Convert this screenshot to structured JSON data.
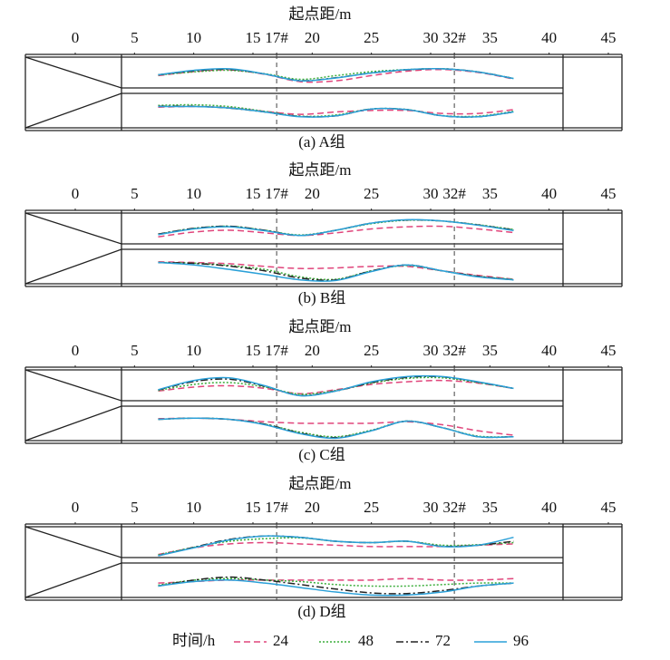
{
  "legend": {
    "title": "时间/h"
  },
  "chart_data": [
    {
      "type": "line",
      "title": "起点距/m",
      "caption": "(a) A组",
      "xlim": [
        -4.2,
        46.1
      ],
      "ylim": [
        0,
        1
      ],
      "xticks": [
        0,
        5,
        10,
        15,
        {
          "value": 17,
          "label": "17#"
        },
        20,
        25,
        30,
        {
          "value": 32,
          "label": "32#"
        },
        35,
        40,
        45
      ],
      "reference_lines": [
        17,
        32
      ],
      "x": [
        7,
        10,
        13,
        16,
        19,
        22,
        25,
        28,
        31,
        34,
        37
      ],
      "series": [
        {
          "name": "24",
          "color": "#e0457b",
          "dash": "dashed",
          "values": [
            0.4,
            0.55,
            0.62,
            0.45,
            0.17,
            0.2,
            0.4,
            0.57,
            0.63,
            0.52,
            0.27
          ],
          "lower_values": [
            0.66,
            0.68,
            0.64,
            0.52,
            0.42,
            0.5,
            0.55,
            0.55,
            0.45,
            0.45,
            0.58
          ]
        },
        {
          "name": "48",
          "color": "#3cae3c",
          "dash": "dotted",
          "values": [
            0.42,
            0.54,
            0.6,
            0.47,
            0.26,
            0.4,
            0.55,
            0.63,
            0.66,
            0.54,
            0.29
          ],
          "lower_values": [
            0.72,
            0.74,
            0.68,
            0.52,
            0.36,
            0.4,
            0.6,
            0.58,
            0.38,
            0.36,
            0.52
          ]
        },
        {
          "name": "72",
          "color": "#222222",
          "dash": "dashdot",
          "values": [
            0.43,
            0.58,
            0.64,
            0.46,
            0.21,
            0.32,
            0.5,
            0.62,
            0.66,
            0.54,
            0.29
          ],
          "lower_values": [
            0.69,
            0.69,
            0.63,
            0.5,
            0.35,
            0.37,
            0.6,
            0.58,
            0.37,
            0.34,
            0.5
          ]
        },
        {
          "name": "96",
          "color": "#2aa0d8",
          "dash": "solid",
          "values": [
            0.43,
            0.6,
            0.66,
            0.46,
            0.2,
            0.31,
            0.5,
            0.63,
            0.66,
            0.54,
            0.29
          ],
          "lower_values": [
            0.68,
            0.68,
            0.63,
            0.5,
            0.34,
            0.37,
            0.6,
            0.58,
            0.37,
            0.34,
            0.5
          ]
        }
      ]
    },
    {
      "type": "line",
      "title": "起点距/m",
      "caption": "(b) B组",
      "xlim": [
        -4.2,
        46.1
      ],
      "ylim": [
        0,
        1
      ],
      "xticks": [
        0,
        5,
        10,
        15,
        {
          "value": 17,
          "label": "17#"
        },
        20,
        25,
        30,
        {
          "value": 32,
          "label": "32#"
        },
        35,
        40,
        45
      ],
      "reference_lines": [
        17,
        32
      ],
      "x": [
        7,
        10,
        13,
        16,
        19,
        22,
        25,
        28,
        31,
        34,
        37
      ],
      "series": [
        {
          "name": "24",
          "color": "#e0457b",
          "dash": "dashed",
          "values": [
            0.2,
            0.38,
            0.45,
            0.35,
            0.25,
            0.35,
            0.5,
            0.58,
            0.6,
            0.5,
            0.36
          ],
          "lower_values": [
            0.7,
            0.68,
            0.64,
            0.55,
            0.48,
            0.5,
            0.55,
            0.55,
            0.4,
            0.25,
            0.12
          ]
        },
        {
          "name": "48",
          "color": "#3cae3c",
          "dash": "dotted",
          "values": [
            0.3,
            0.52,
            0.6,
            0.45,
            0.27,
            0.45,
            0.7,
            0.83,
            0.8,
            0.66,
            0.48
          ],
          "lower_values": [
            0.68,
            0.66,
            0.58,
            0.45,
            0.2,
            0.12,
            0.4,
            0.58,
            0.4,
            0.22,
            0.12
          ]
        },
        {
          "name": "72",
          "color": "#222222",
          "dash": "dashdot",
          "values": [
            0.3,
            0.52,
            0.6,
            0.45,
            0.25,
            0.45,
            0.72,
            0.84,
            0.8,
            0.65,
            0.46
          ],
          "lower_values": [
            0.68,
            0.65,
            0.56,
            0.4,
            0.16,
            0.1,
            0.4,
            0.6,
            0.4,
            0.22,
            0.1
          ]
        },
        {
          "name": "96",
          "color": "#2aa0d8",
          "dash": "solid",
          "values": [
            0.28,
            0.5,
            0.58,
            0.43,
            0.25,
            0.45,
            0.72,
            0.85,
            0.8,
            0.64,
            0.44
          ],
          "lower_values": [
            0.68,
            0.6,
            0.45,
            0.28,
            0.1,
            0.08,
            0.38,
            0.6,
            0.4,
            0.2,
            0.1
          ]
        }
      ]
    },
    {
      "type": "line",
      "title": "起点距/m",
      "caption": "(c) C组",
      "xlim": [
        -4.2,
        46.1
      ],
      "ylim": [
        0,
        1
      ],
      "xticks": [
        0,
        5,
        10,
        15,
        {
          "value": 17,
          "label": "17#"
        },
        20,
        25,
        30,
        {
          "value": 32,
          "label": "32#"
        },
        35,
        40,
        45
      ],
      "reference_lines": [
        17,
        32
      ],
      "x": [
        7,
        10,
        13,
        16,
        19,
        22,
        25,
        28,
        31,
        34,
        37
      ],
      "series": [
        {
          "name": "24",
          "color": "#e0457b",
          "dash": "dashed",
          "values": [
            0.3,
            0.45,
            0.5,
            0.4,
            0.2,
            0.35,
            0.55,
            0.65,
            0.7,
            0.6,
            0.4
          ],
          "lower_values": [
            0.7,
            0.72,
            0.68,
            0.6,
            0.55,
            0.55,
            0.55,
            0.6,
            0.5,
            0.3,
            0.15
          ]
        },
        {
          "name": "48",
          "color": "#3cae3c",
          "dash": "dotted",
          "values": [
            0.32,
            0.55,
            0.62,
            0.45,
            0.18,
            0.32,
            0.6,
            0.78,
            0.8,
            0.62,
            0.4
          ],
          "lower_values": [
            0.68,
            0.72,
            0.68,
            0.52,
            0.25,
            0.1,
            0.32,
            0.62,
            0.4,
            0.12,
            0.1
          ]
        },
        {
          "name": "72",
          "color": "#222222",
          "dash": "dashdot",
          "values": [
            0.34,
            0.66,
            0.75,
            0.48,
            0.13,
            0.3,
            0.62,
            0.82,
            0.84,
            0.64,
            0.4
          ],
          "lower_values": [
            0.68,
            0.72,
            0.68,
            0.52,
            0.22,
            0.07,
            0.3,
            0.62,
            0.4,
            0.1,
            0.1
          ]
        },
        {
          "name": "96",
          "color": "#2aa0d8",
          "dash": "solid",
          "values": [
            0.35,
            0.7,
            0.8,
            0.5,
            0.12,
            0.3,
            0.65,
            0.85,
            0.85,
            0.65,
            0.4
          ],
          "lower_values": [
            0.68,
            0.72,
            0.68,
            0.5,
            0.2,
            0.05,
            0.3,
            0.62,
            0.4,
            0.1,
            0.1
          ]
        }
      ]
    },
    {
      "type": "line",
      "title": "起点距/m",
      "caption": "(d) D组",
      "xlim": [
        -4.2,
        46.1
      ],
      "ylim": [
        0,
        1
      ],
      "xticks": [
        0,
        5,
        10,
        15,
        {
          "value": 17,
          "label": "17#"
        },
        20,
        25,
        30,
        {
          "value": 32,
          "label": "32#"
        },
        35,
        40,
        45
      ],
      "reference_lines": [
        17,
        32
      ],
      "x": [
        7,
        10,
        13,
        16,
        19,
        22,
        25,
        28,
        31,
        34,
        37
      ],
      "series": [
        {
          "name": "24",
          "color": "#e0457b",
          "dash": "dashed",
          "values": [
            0.05,
            0.3,
            0.45,
            0.5,
            0.45,
            0.4,
            0.35,
            0.35,
            0.35,
            0.4,
            0.45
          ],
          "lower_values": [
            0.45,
            0.5,
            0.55,
            0.55,
            0.55,
            0.55,
            0.55,
            0.6,
            0.55,
            0.55,
            0.6
          ]
        },
        {
          "name": "48",
          "color": "#3cae3c",
          "dash": "dotted",
          "values": [
            0.03,
            0.32,
            0.55,
            0.65,
            0.68,
            0.55,
            0.5,
            0.55,
            0.4,
            0.42,
            0.5
          ],
          "lower_values": [
            0.38,
            0.55,
            0.6,
            0.55,
            0.5,
            0.4,
            0.35,
            0.35,
            0.4,
            0.45,
            0.45
          ]
        },
        {
          "name": "72",
          "color": "#222222",
          "dash": "dashdot",
          "values": [
            0.0,
            0.32,
            0.62,
            0.75,
            0.7,
            0.55,
            0.5,
            0.55,
            0.36,
            0.4,
            0.55
          ],
          "lower_values": [
            0.35,
            0.55,
            0.65,
            0.55,
            0.4,
            0.25,
            0.12,
            0.1,
            0.2,
            0.35,
            0.45
          ]
        },
        {
          "name": "96",
          "color": "#2aa0d8",
          "dash": "solid",
          "values": [
            0.0,
            0.3,
            0.6,
            0.75,
            0.7,
            0.55,
            0.5,
            0.55,
            0.35,
            0.4,
            0.7
          ],
          "lower_values": [
            0.35,
            0.5,
            0.55,
            0.45,
            0.3,
            0.15,
            0.05,
            0.05,
            0.15,
            0.35,
            0.45
          ]
        }
      ]
    }
  ]
}
